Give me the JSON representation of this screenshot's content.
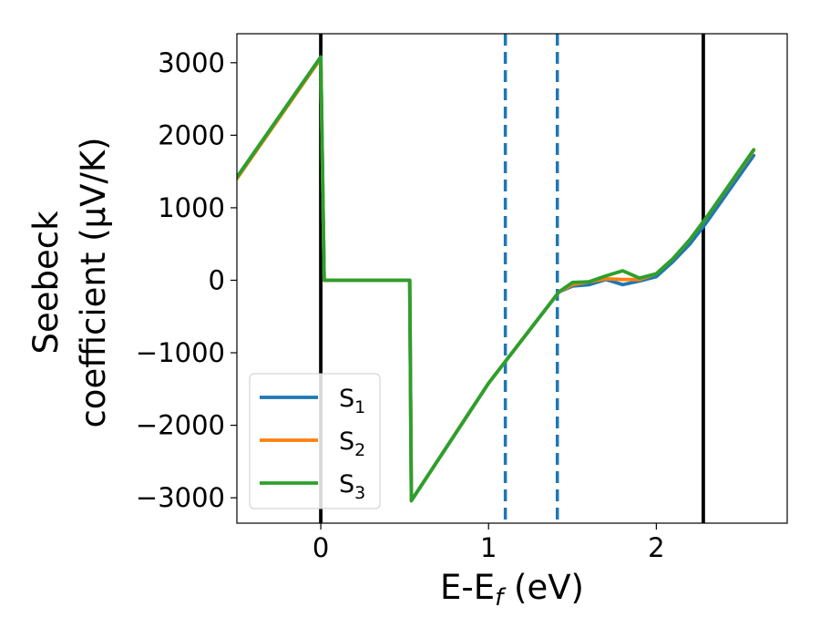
{
  "chart_data": {
    "type": "line",
    "xlabel_main": "E-E",
    "xlabel_sub": "f",
    "xlabel_unit": " (eV)",
    "ylabel_line1": "Seebeck",
    "ylabel_line2": "coefficient  (μV/K)",
    "xlim": [
      -0.5,
      2.78
    ],
    "ylim": [
      -3350,
      3400
    ],
    "x_ticks": [
      {
        "value": 0,
        "label": "0"
      },
      {
        "value": 1,
        "label": "1"
      },
      {
        "value": 2,
        "label": "2"
      }
    ],
    "y_ticks": [
      {
        "value": 3000,
        "label": "3000"
      },
      {
        "value": 2000,
        "label": "2000"
      },
      {
        "value": 1000,
        "label": "1000"
      },
      {
        "value": 0,
        "label": "0"
      },
      {
        "value": -1000,
        "label": "−1000"
      },
      {
        "value": -2000,
        "label": "−2000"
      },
      {
        "value": -3000,
        "label": "−3000"
      }
    ],
    "vertical_lines": [
      {
        "x": 0.0,
        "style": "solid",
        "color": "#000000"
      },
      {
        "x": 2.28,
        "style": "solid",
        "color": "#000000"
      },
      {
        "x": 1.1,
        "style": "dashed",
        "color": "#1f77b4"
      },
      {
        "x": 1.41,
        "style": "dashed",
        "color": "#1f77b4"
      }
    ],
    "series": [
      {
        "name": "S",
        "sub": "1",
        "color": "#1f77b4",
        "points": [
          [
            -0.5,
            1420
          ],
          [
            0.0,
            3080
          ],
          [
            0.02,
            0
          ],
          [
            0.53,
            0
          ],
          [
            0.54,
            -3040
          ],
          [
            1.0,
            -1420
          ],
          [
            1.42,
            -160
          ],
          [
            1.5,
            -80
          ],
          [
            1.6,
            -60
          ],
          [
            1.7,
            10
          ],
          [
            1.8,
            -60
          ],
          [
            1.9,
            -10
          ],
          [
            2.0,
            50
          ],
          [
            2.1,
            260
          ],
          [
            2.2,
            500
          ],
          [
            2.3,
            800
          ],
          [
            2.58,
            1720
          ]
        ]
      },
      {
        "name": "S",
        "sub": "2",
        "color": "#ff7f0e",
        "points": [
          [
            -0.5,
            1400
          ],
          [
            0.0,
            3060
          ],
          [
            0.02,
            0
          ],
          [
            0.53,
            0
          ],
          [
            0.54,
            -3040
          ],
          [
            1.0,
            -1420
          ],
          [
            1.42,
            -160
          ],
          [
            1.5,
            -60
          ],
          [
            1.6,
            -20
          ],
          [
            1.7,
            20
          ],
          [
            1.8,
            10
          ],
          [
            1.9,
            10
          ],
          [
            2.0,
            90
          ],
          [
            2.1,
            300
          ],
          [
            2.2,
            560
          ],
          [
            2.3,
            870
          ],
          [
            2.58,
            1790
          ]
        ]
      },
      {
        "name": "S",
        "sub": "3",
        "color": "#2ca02c",
        "points": [
          [
            -0.5,
            1420
          ],
          [
            0.0,
            3080
          ],
          [
            0.02,
            0
          ],
          [
            0.53,
            0
          ],
          [
            0.54,
            -3040
          ],
          [
            1.0,
            -1420
          ],
          [
            1.42,
            -160
          ],
          [
            1.5,
            -30
          ],
          [
            1.6,
            -20
          ],
          [
            1.7,
            60
          ],
          [
            1.8,
            130
          ],
          [
            1.9,
            30
          ],
          [
            2.0,
            90
          ],
          [
            2.1,
            300
          ],
          [
            2.2,
            560
          ],
          [
            2.3,
            870
          ],
          [
            2.58,
            1800
          ]
        ]
      }
    ],
    "legend_position": "lower-left",
    "grid": false
  }
}
